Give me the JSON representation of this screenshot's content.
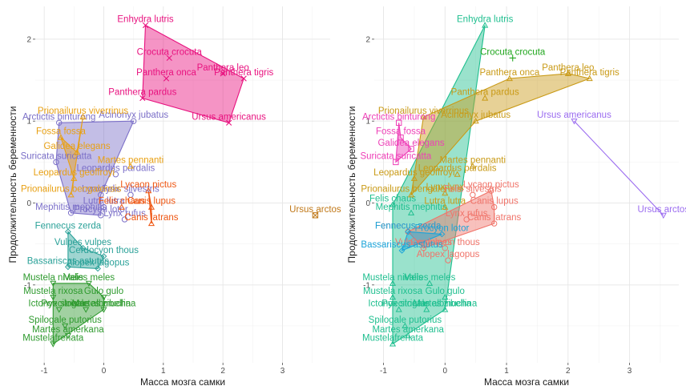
{
  "figure": {
    "xlabel": "Масса мозга самки",
    "ylabel": "Продолжительность беременности",
    "xticks": [
      -1,
      0,
      1,
      2,
      3
    ],
    "yticks": [
      -1,
      0,
      1,
      2
    ],
    "xlim": [
      -1.15,
      3.8
    ],
    "ylim": [
      -1.95,
      2.4
    ]
  },
  "chart_data": [
    {
      "type": "scatter",
      "panel": "left",
      "xlabel": "Масса мозга самки",
      "ylabel": "Продолжительность беременности",
      "grid": true,
      "legend": "none",
      "groups": [
        {
          "color": "#e8127f",
          "marker": "x",
          "hull": [
            "Enhydra lutris",
            "Panthera tigris",
            "Ursus americanus",
            "Panthera pardus"
          ],
          "points": [
            {
              "name": "Enhydra lutris",
              "x": 0.7,
              "y": 2.17
            },
            {
              "name": "Crocuta crocuta",
              "x": 1.1,
              "y": 1.77
            },
            {
              "name": "Panthera leo",
              "x": 2.0,
              "y": 1.58
            },
            {
              "name": "Panthera onca",
              "x": 1.05,
              "y": 1.52
            },
            {
              "name": "Panthera tigris",
              "x": 2.35,
              "y": 1.52
            },
            {
              "name": "Panthera pardus",
              "x": 0.65,
              "y": 1.28
            },
            {
              "name": "Ursus americanus",
              "x": 2.1,
              "y": 0.98
            }
          ]
        },
        {
          "color": "#7b6fc8",
          "marker": "+",
          "hull": [
            "Arctictis binturong",
            "Acinonyx jubatus",
            "Lynx lynx",
            "Procyon lotor",
            "Mephitis mephitis",
            "Suricata suricatta"
          ],
          "points": [
            {
              "name": "Arctictis binturong",
              "x": -0.75,
              "y": 0.98
            },
            {
              "name": "Acinonyx jubatus",
              "x": 0.5,
              "y": 1.0
            },
            {
              "name": "Suricata suricatta",
              "x": -0.8,
              "y": 0.5
            },
            {
              "name": "Leopardus pardalis",
              "x": 0.2,
              "y": 0.35
            },
            {
              "name": "Lynx lynx",
              "x": -0.05,
              "y": 0.1
            },
            {
              "name": "Felis silvestris",
              "x": 0.45,
              "y": 0.1
            },
            {
              "name": "Lutra lutra",
              "x": 0.0,
              "y": -0.05
            },
            {
              "name": "Lynx rufus",
              "x": 0.35,
              "y": -0.2
            },
            {
              "name": "Procyon lotor",
              "x": -0.05,
              "y": -0.15
            },
            {
              "name": "Mephitis mephitis",
              "x": -0.55,
              "y": -0.12
            }
          ]
        },
        {
          "color": "#e8a013",
          "marker": "triangle",
          "hull": [
            "Prionailurus viverrinus",
            "Galidea elegans",
            "Fossa fossa",
            "Leopardus geoffroyi",
            "Prionailurus bengalensis"
          ],
          "points": [
            {
              "name": "Prionailurus viverrinus",
              "x": -0.35,
              "y": 1.05
            },
            {
              "name": "Fossa fossa",
              "x": -0.72,
              "y": 0.8
            },
            {
              "name": "Galidea elegans",
              "x": -0.45,
              "y": 0.62
            },
            {
              "name": "Martes pennanti",
              "x": 0.45,
              "y": 0.45
            },
            {
              "name": "Leopardus geoffroyi",
              "x": -0.5,
              "y": 0.3
            },
            {
              "name": "Prionailurus bengalensis",
              "x": -0.55,
              "y": 0.1
            }
          ]
        },
        {
          "color": "#ee5511",
          "marker": "triangle",
          "hull": [
            "Lycaon pictus",
            "Canis lupus",
            "Canis latrans"
          ],
          "points": [
            {
              "name": "Lycaon pictus",
              "x": 0.75,
              "y": 0.15
            },
            {
              "name": "Canis lupus",
              "x": 0.8,
              "y": -0.05
            },
            {
              "name": "Felis chaus",
              "x": 0.3,
              "y": -0.05
            },
            {
              "name": "Canis latrans",
              "x": 0.8,
              "y": -0.25
            }
          ]
        },
        {
          "color": "#c07818",
          "marker": "boxx",
          "hull": [],
          "points": [
            {
              "name": "Ursus arctos",
              "x": 3.55,
              "y": -0.15
            }
          ]
        },
        {
          "color": "#2aa198",
          "marker": "diamond",
          "hull": [
            "Fennecus zerda",
            "Vulpes vulpes",
            "Cerdocyon thous",
            "Alopex lagopus",
            "Bassariscus astutus"
          ],
          "points": [
            {
              "name": "Fennecus zerda",
              "x": -0.6,
              "y": -0.35
            },
            {
              "name": "Vulpes vulpes",
              "x": -0.35,
              "y": -0.55
            },
            {
              "name": "Cerdocyon thous",
              "x": 0.0,
              "y": -0.65
            },
            {
              "name": "Alopex lagopus",
              "x": -0.1,
              "y": -0.8
            },
            {
              "name": "Bassariscus astutus",
              "x": -0.6,
              "y": -0.78
            }
          ]
        },
        {
          "color": "#2e9a2e",
          "marker": "triangle-down",
          "hull": [
            "Mustela nivalis",
            "Meles meles",
            "Gulo gulo",
            "Martes zibellina",
            "Mustelafrenata"
          ],
          "points": [
            {
              "name": "Mustela nivalis",
              "x": -0.85,
              "y": -0.98
            },
            {
              "name": "Meles meles",
              "x": -0.25,
              "y": -0.98
            },
            {
              "name": "Mustela rixosa",
              "x": -0.85,
              "y": -1.15
            },
            {
              "name": "Gulo gulo",
              "x": 0.0,
              "y": -1.15
            },
            {
              "name": "Ictonyx striatus",
              "x": -0.75,
              "y": -1.3
            },
            {
              "name": "Poecilogale albinucha",
              "x": -0.3,
              "y": -1.3
            },
            {
              "name": "Spilogale putorius",
              "x": -0.65,
              "y": -1.5
            },
            {
              "name": "Martes amerkana",
              "x": -0.6,
              "y": -1.62
            },
            {
              "name": "Martes zibellina",
              "x": 0.0,
              "y": -1.3
            },
            {
              "name": "Mustelafrenata",
              "x": -0.85,
              "y": -1.72
            }
          ]
        }
      ]
    },
    {
      "type": "scatter",
      "panel": "right",
      "xlabel": "Масса мозга самки",
      "ylabel": "Продолжительность беременности",
      "grid": true,
      "legend": "none",
      "groups": [
        {
          "color": "#1fbf8f",
          "marker": "triangle",
          "hull": [
            "Enhydra lutris",
            "Martes zibellina",
            "Mustelafrenata",
            "Mustela nivalis",
            "Felis chaus"
          ],
          "points": [
            {
              "name": "Enhydra lutris",
              "x": 0.65,
              "y": 2.17
            },
            {
              "name": "Felis chaus",
              "x": -0.85,
              "y": -0.02
            },
            {
              "name": "Mephitis mephitis",
              "x": -0.55,
              "y": -0.12
            },
            {
              "name": "Mustela nivalis",
              "x": -0.85,
              "y": -0.98
            },
            {
              "name": "Meles meles",
              "x": -0.25,
              "y": -0.98
            },
            {
              "name": "Mustela rixosa",
              "x": -0.85,
              "y": -1.15
            },
            {
              "name": "Gulo gulo",
              "x": 0.0,
              "y": -1.15
            },
            {
              "name": "Ictonyx striatus",
              "x": -0.75,
              "y": -1.3
            },
            {
              "name": "Poecilogale albinucha",
              "x": -0.3,
              "y": -1.3
            },
            {
              "name": "Spilogale putorius",
              "x": -0.65,
              "y": -1.5
            },
            {
              "name": "Martes amerkana",
              "x": -0.6,
              "y": -1.62
            },
            {
              "name": "Martes zibellina",
              "x": 0.0,
              "y": -1.3
            },
            {
              "name": "Mustelafrenata",
              "x": -0.85,
              "y": -1.72
            }
          ]
        },
        {
          "color": "#22a71f",
          "marker": "plus",
          "hull": [],
          "points": [
            {
              "name": "Crocuta crocuta",
              "x": 1.1,
              "y": 1.77
            }
          ]
        },
        {
          "color": "#c99a16",
          "marker": "triangle",
          "hull": [
            "Panthera leo",
            "Panthera tigris",
            "Acinonyx jubatus",
            "Prionailurus bengalensis",
            "Prionailurus viverrinus",
            "Panthera onca"
          ],
          "points": [
            {
              "name": "Panthera leo",
              "x": 2.0,
              "y": 1.58
            },
            {
              "name": "Panthera onca",
              "x": 1.05,
              "y": 1.52
            },
            {
              "name": "Panthera tigris",
              "x": 2.35,
              "y": 1.52
            },
            {
              "name": "Panthera pardus",
              "x": 0.65,
              "y": 1.28
            },
            {
              "name": "Prionailurus viverrinus",
              "x": -0.35,
              "y": 1.05
            },
            {
              "name": "Acinonyx jubatus",
              "x": 0.5,
              "y": 1.0
            },
            {
              "name": "Martes pennanti",
              "x": 0.45,
              "y": 0.45
            },
            {
              "name": "Leopardus geoffroyi",
              "x": -0.5,
              "y": 0.3
            },
            {
              "name": "Leopardus pardalis",
              "x": 0.2,
              "y": 0.35
            },
            {
              "name": "Prionailurus bengalensis",
              "x": -0.55,
              "y": 0.1
            },
            {
              "name": "Lynx lynx",
              "x": 0.0,
              "y": 0.12
            },
            {
              "name": "Lutra lutra",
              "x": 0.0,
              "y": -0.05
            }
          ]
        },
        {
          "color": "#9b6cf0",
          "marker": "triangle-down",
          "hull": [
            "Ursus americanus",
            "Ursus arctos"
          ],
          "points": [
            {
              "name": "Ursus americanus",
              "x": 2.1,
              "y": 1.0
            },
            {
              "name": "Ursus arctos",
              "x": 3.55,
              "y": -0.15
            }
          ]
        },
        {
          "color": "#ee3fb7",
          "marker": "square",
          "hull": [
            "Arctictis binturong",
            "Fossa fossa",
            "Galidea elegans",
            "Suricata suricatta"
          ],
          "points": [
            {
              "name": "Arctictis binturong",
              "x": -0.75,
              "y": 0.98
            },
            {
              "name": "Fossa fossa",
              "x": -0.72,
              "y": 0.8
            },
            {
              "name": "Galidea elegans",
              "x": -0.55,
              "y": 0.66
            },
            {
              "name": "Suricata suricatta",
              "x": -0.8,
              "y": 0.5
            }
          ]
        },
        {
          "color": "#f0746a",
          "marker": "circle",
          "hull": [
            "Lycaon pictus",
            "Canis lupus",
            "Canis latrans",
            "Vulpes vulpes",
            "Fennecus zerda"
          ],
          "points": [
            {
              "name": "Lycaon pictus",
              "x": 0.75,
              "y": 0.15
            },
            {
              "name": "Felis silvestris",
              "x": 0.45,
              "y": 0.1
            },
            {
              "name": "Lynx rufus",
              "x": 0.35,
              "y": -0.2
            },
            {
              "name": "Canis lupus",
              "x": 0.8,
              "y": -0.05
            },
            {
              "name": "Canis latrans",
              "x": 0.8,
              "y": -0.25
            },
            {
              "name": "Fennecus zerda",
              "x": -0.6,
              "y": -0.35
            },
            {
              "name": "Cerdocyon thous",
              "x": 0.0,
              "y": -0.55
            },
            {
              "name": "Vulpes vulpes",
              "x": -0.35,
              "y": -0.55
            },
            {
              "name": "Alopex lagopus",
              "x": 0.05,
              "y": -0.7
            }
          ]
        },
        {
          "color": "#1aa3d9",
          "marker": "diamond",
          "hull": [
            "Procyon lotor",
            "Bassariscus astutus",
            "Fennecus zerda"
          ],
          "points": [
            {
              "name": "Procyon lotor",
              "x": -0.05,
              "y": -0.38
            },
            {
              "name": "Bassariscus astutus",
              "x": -0.7,
              "y": -0.58
            },
            {
              "name": "Fennecus zerda",
              "x": -0.6,
              "y": -0.35
            }
          ]
        }
      ]
    }
  ]
}
